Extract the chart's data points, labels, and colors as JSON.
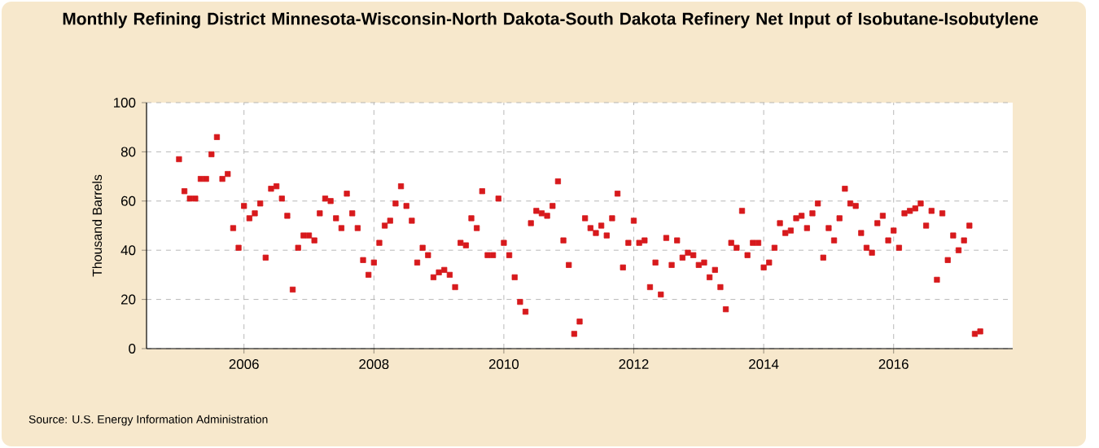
{
  "chart_data": {
    "type": "scatter",
    "title": "Monthly Refining District Minnesota-Wisconsin-North Dakota-South Dakota Refinery Net Input of Isobutane-Isobutylene",
    "ylabel": "Thousand Barrels",
    "annotations": [
      "Source: U.S. Energy Information Administration"
    ],
    "x": [
      "2005-01",
      "2005-02",
      "2005-03",
      "2005-04",
      "2005-05",
      "2005-06",
      "2005-07",
      "2005-08",
      "2005-09",
      "2005-10",
      "2005-11",
      "2005-12",
      "2006-01",
      "2006-02",
      "2006-03",
      "2006-04",
      "2006-05",
      "2006-06",
      "2006-07",
      "2006-08",
      "2006-09",
      "2006-10",
      "2006-11",
      "2006-12",
      "2007-01",
      "2007-02",
      "2007-03",
      "2007-04",
      "2007-05",
      "2007-06",
      "2007-07",
      "2007-08",
      "2007-09",
      "2007-10",
      "2007-11",
      "2007-12",
      "2008-01",
      "2008-02",
      "2008-03",
      "2008-04",
      "2008-05",
      "2008-06",
      "2008-07",
      "2008-08",
      "2008-09",
      "2008-10",
      "2008-11",
      "2008-12",
      "2009-01",
      "2009-02",
      "2009-03",
      "2009-04",
      "2009-05",
      "2009-06",
      "2009-07",
      "2009-08",
      "2009-09",
      "2009-10",
      "2009-11",
      "2009-12",
      "2010-01",
      "2010-02",
      "2010-03",
      "2010-04",
      "2010-05",
      "2010-06",
      "2010-07",
      "2010-08",
      "2010-09",
      "2010-10",
      "2010-11",
      "2010-12",
      "2011-01",
      "2011-02",
      "2011-03",
      "2011-04",
      "2011-05",
      "2011-06",
      "2011-07",
      "2011-08",
      "2011-09",
      "2011-10",
      "2011-11",
      "2011-12",
      "2012-01",
      "2012-02",
      "2012-03",
      "2012-04",
      "2012-05",
      "2012-06",
      "2012-07",
      "2012-08",
      "2012-09",
      "2012-10",
      "2012-11",
      "2012-12",
      "2013-01",
      "2013-02",
      "2013-03",
      "2013-04",
      "2013-05",
      "2013-06",
      "2013-07",
      "2013-08",
      "2013-09",
      "2013-10",
      "2013-11",
      "2013-12",
      "2014-01",
      "2014-02",
      "2014-03",
      "2014-04",
      "2014-05",
      "2014-06",
      "2014-07",
      "2014-08",
      "2014-09",
      "2014-10",
      "2014-11",
      "2014-12",
      "2015-01",
      "2015-02",
      "2015-03",
      "2015-04",
      "2015-05",
      "2015-06",
      "2015-07",
      "2015-08",
      "2015-09",
      "2015-10",
      "2015-11",
      "2015-12",
      "2016-01",
      "2016-02",
      "2016-03",
      "2016-04",
      "2016-05",
      "2016-06",
      "2016-07",
      "2016-08",
      "2016-09",
      "2016-10",
      "2016-11",
      "2016-12",
      "2017-01",
      "2017-02",
      "2017-03",
      "2017-04",
      "2017-05"
    ],
    "values": [
      77,
      64,
      61,
      61,
      69,
      69,
      79,
      86,
      69,
      71,
      49,
      41,
      58,
      53,
      55,
      59,
      37,
      65,
      66,
      61,
      54,
      24,
      41,
      46,
      46,
      44,
      55,
      61,
      60,
      53,
      49,
      63,
      55,
      49,
      36,
      30,
      35,
      43,
      50,
      52,
      59,
      66,
      58,
      52,
      35,
      41,
      38,
      29,
      31,
      32,
      30,
      25,
      43,
      42,
      53,
      49,
      64,
      38,
      38,
      61,
      43,
      38,
      29,
      19,
      15,
      51,
      56,
      55,
      54,
      58,
      68,
      44,
      34,
      6,
      11,
      53,
      49,
      47,
      50,
      46,
      53,
      63,
      33,
      43,
      52,
      43,
      44,
      25,
      35,
      22,
      45,
      34,
      44,
      37,
      39,
      38,
      34,
      35,
      29,
      32,
      25,
      16,
      43,
      41,
      56,
      38,
      43,
      43,
      33,
      35,
      41,
      51,
      47,
      48,
      53,
      54,
      49,
      55,
      59,
      37,
      49,
      44,
      53,
      65,
      59,
      58,
      47,
      41,
      39,
      51,
      54,
      44,
      48,
      41,
      55,
      56,
      57,
      59,
      50,
      56,
      28,
      55,
      36,
      46,
      40,
      44,
      50,
      6,
      7
    ],
    "color": "#d7191c",
    "marker": "square",
    "xlim": [
      "2004-07",
      "2017-11"
    ],
    "xticks": [
      "2006",
      "2008",
      "2010",
      "2012",
      "2014",
      "2016"
    ],
    "ylim": [
      0,
      100
    ],
    "yticks": [
      0,
      20,
      40,
      60,
      80,
      100
    ],
    "grid": true
  }
}
